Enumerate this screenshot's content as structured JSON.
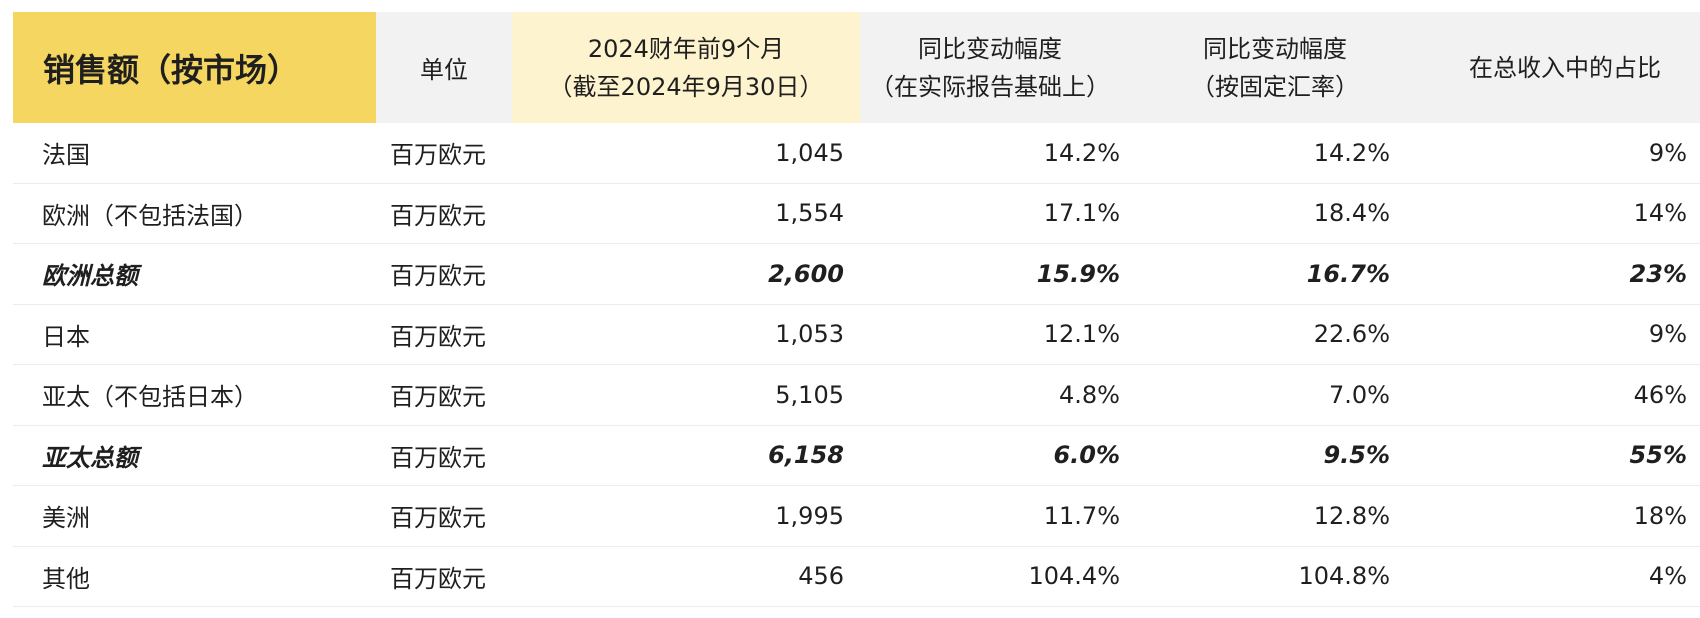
{
  "chart_data": {
    "type": "table",
    "title": "销售额（按市场）",
    "columns": [
      "单位",
      "2024财年前9个月（截至2024年9月30日）",
      "同比变动幅度（在实际报告基础上）",
      "同比变动幅度（按固定汇率）",
      "在总收入中的占比"
    ],
    "header": {
      "title": "销售额（按市场）",
      "unit": "单位",
      "period_line1": "2024财年前9个月",
      "period_line2": "（截至2024年9月30日）",
      "yoy_line1": "同比变动幅度",
      "yoy_line2": "（在实际报告基础上）",
      "cc_line1": "同比变动幅度",
      "cc_line2": "（按固定汇率）",
      "share": "在总收入中的占比"
    },
    "rows": [
      {
        "market": "法国",
        "unit": "百万欧元",
        "value": "1,045",
        "yoy_reported": "14.2%",
        "yoy_constant": "14.2%",
        "share": "9%",
        "bold": false
      },
      {
        "market": "欧洲（不包括法国）",
        "unit": "百万欧元",
        "value": "1,554",
        "yoy_reported": "17.1%",
        "yoy_constant": "18.4%",
        "share": "14%",
        "bold": false
      },
      {
        "market": "欧洲总额",
        "unit": "百万欧元",
        "value": "2,600",
        "yoy_reported": "15.9%",
        "yoy_constant": "16.7%",
        "share": "23%",
        "bold": true
      },
      {
        "market": "日本",
        "unit": "百万欧元",
        "value": "1,053",
        "yoy_reported": "12.1%",
        "yoy_constant": "22.6%",
        "share": "9%",
        "bold": false
      },
      {
        "market": "亚太（不包括日本）",
        "unit": "百万欧元",
        "value": "5,105",
        "yoy_reported": "4.8%",
        "yoy_constant": "7.0%",
        "share": "46%",
        "bold": false
      },
      {
        "market": "亚太总额",
        "unit": "百万欧元",
        "value": "6,158",
        "yoy_reported": "6.0%",
        "yoy_constant": "9.5%",
        "share": "55%",
        "bold": true
      },
      {
        "market": "美洲",
        "unit": "百万欧元",
        "value": "1,995",
        "yoy_reported": "11.7%",
        "yoy_constant": "12.8%",
        "share": "18%",
        "bold": false
      },
      {
        "market": "其他",
        "unit": "百万欧元",
        "value": "456",
        "yoy_reported": "104.4%",
        "yoy_constant": "104.8%",
        "share": "4%",
        "bold": false
      }
    ]
  }
}
